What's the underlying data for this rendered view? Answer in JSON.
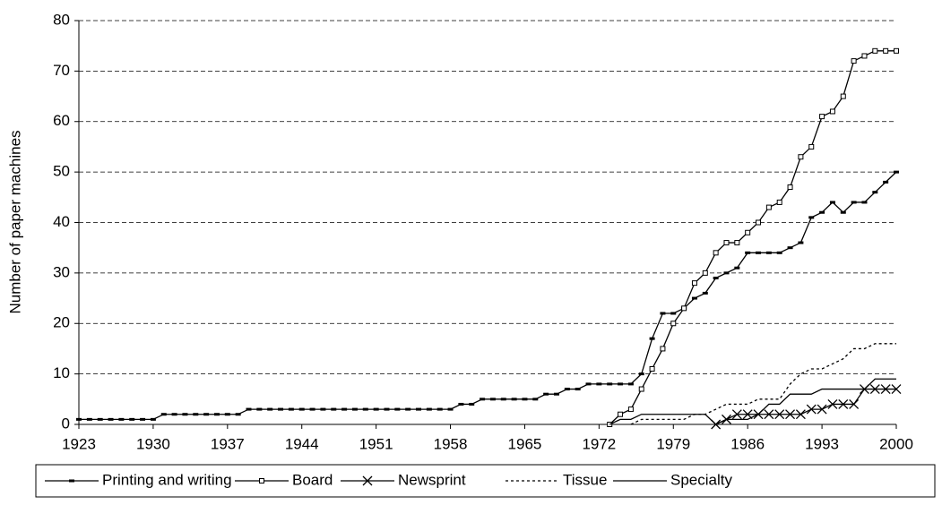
{
  "chart_data": {
    "type": "line",
    "y_label": "Number of paper machines",
    "x": [
      1923,
      1924,
      1925,
      1926,
      1927,
      1928,
      1929,
      1930,
      1931,
      1932,
      1933,
      1934,
      1935,
      1936,
      1937,
      1938,
      1939,
      1940,
      1941,
      1942,
      1943,
      1944,
      1945,
      1946,
      1947,
      1948,
      1949,
      1950,
      1951,
      1952,
      1953,
      1954,
      1955,
      1956,
      1957,
      1958,
      1959,
      1960,
      1961,
      1962,
      1963,
      1964,
      1965,
      1966,
      1967,
      1968,
      1969,
      1970,
      1971,
      1972,
      1973,
      1974,
      1975,
      1976,
      1977,
      1978,
      1979,
      1980,
      1981,
      1982,
      1983,
      1984,
      1985,
      1986,
      1987,
      1988,
      1989,
      1990,
      1991,
      1992,
      1993,
      1994,
      1995,
      1996,
      1997,
      1998,
      1999,
      2000
    ],
    "series": [
      {
        "name": "Printing and writing",
        "color": "#000000",
        "marker": "dash",
        "line_style": "solid",
        "values": [
          1,
          1,
          1,
          1,
          1,
          1,
          1,
          1,
          2,
          2,
          2,
          2,
          2,
          2,
          2,
          2,
          3,
          3,
          3,
          3,
          3,
          3,
          3,
          3,
          3,
          3,
          3,
          3,
          3,
          3,
          3,
          3,
          3,
          3,
          3,
          3,
          4,
          4,
          5,
          5,
          5,
          5,
          5,
          5,
          6,
          6,
          7,
          7,
          8,
          8,
          8,
          8,
          8,
          10,
          17,
          22,
          22,
          23,
          25,
          26,
          29,
          30,
          31,
          34,
          34,
          34,
          34,
          35,
          36,
          41,
          42,
          44,
          42,
          44,
          44,
          46,
          48,
          50
        ]
      },
      {
        "name": "Board",
        "color": "#000000",
        "marker": "square",
        "line_style": "solid",
        "values": [
          null,
          null,
          null,
          null,
          null,
          null,
          null,
          null,
          null,
          null,
          null,
          null,
          null,
          null,
          null,
          null,
          null,
          null,
          null,
          null,
          null,
          null,
          null,
          null,
          null,
          null,
          null,
          null,
          null,
          null,
          null,
          null,
          null,
          null,
          null,
          null,
          null,
          null,
          null,
          null,
          null,
          null,
          null,
          null,
          null,
          null,
          null,
          null,
          null,
          null,
          0,
          2,
          3,
          7,
          11,
          15,
          20,
          23,
          28,
          30,
          34,
          36,
          36,
          38,
          40,
          43,
          44,
          47,
          53,
          55,
          61,
          62,
          65,
          72,
          73,
          74,
          74,
          74
        ]
      },
      {
        "name": "Newsprint",
        "color": "#000000",
        "marker": "x",
        "line_style": "solid",
        "values": [
          null,
          null,
          null,
          null,
          null,
          null,
          null,
          null,
          null,
          null,
          null,
          null,
          null,
          null,
          null,
          null,
          null,
          null,
          null,
          null,
          null,
          null,
          null,
          null,
          null,
          null,
          null,
          null,
          null,
          null,
          null,
          null,
          null,
          null,
          null,
          null,
          null,
          null,
          null,
          null,
          null,
          null,
          null,
          null,
          null,
          null,
          null,
          null,
          null,
          null,
          null,
          null,
          null,
          null,
          null,
          null,
          null,
          null,
          null,
          null,
          0,
          1,
          2,
          2,
          2,
          2,
          2,
          2,
          2,
          3,
          3,
          4,
          4,
          4,
          7,
          7,
          7,
          7
        ]
      },
      {
        "name": "Tissue",
        "color": "#000000",
        "marker": "none",
        "line_style": "dotted",
        "values": [
          null,
          null,
          null,
          null,
          null,
          null,
          null,
          null,
          null,
          null,
          null,
          null,
          null,
          null,
          null,
          null,
          null,
          null,
          null,
          null,
          null,
          null,
          null,
          null,
          null,
          null,
          null,
          null,
          null,
          null,
          null,
          null,
          null,
          null,
          null,
          null,
          null,
          null,
          null,
          null,
          null,
          null,
          null,
          null,
          null,
          null,
          null,
          null,
          null,
          null,
          null,
          null,
          0,
          1,
          1,
          1,
          1,
          1,
          2,
          2,
          3,
          4,
          4,
          4,
          5,
          5,
          5,
          8,
          10,
          11,
          11,
          12,
          13,
          15,
          15,
          16,
          16,
          16
        ]
      },
      {
        "name": "Specialty",
        "color": "#000000",
        "marker": "none",
        "line_style": "solid",
        "values": [
          null,
          null,
          null,
          null,
          null,
          null,
          null,
          null,
          null,
          null,
          null,
          null,
          null,
          null,
          null,
          null,
          null,
          null,
          null,
          null,
          null,
          null,
          null,
          null,
          null,
          null,
          null,
          null,
          null,
          null,
          null,
          null,
          null,
          null,
          null,
          null,
          null,
          null,
          null,
          null,
          null,
          null,
          null,
          null,
          null,
          null,
          null,
          null,
          null,
          null,
          0,
          1,
          1,
          2,
          2,
          2,
          2,
          2,
          2,
          2,
          0,
          1,
          1,
          1,
          2,
          4,
          4,
          6,
          6,
          6,
          7,
          7,
          7,
          7,
          7,
          9,
          9,
          9
        ]
      }
    ],
    "xlim": [
      1923,
      2000
    ],
    "xticks": [
      1923,
      1930,
      1937,
      1944,
      1951,
      1958,
      1965,
      1972,
      1979,
      1986,
      1993,
      2000
    ],
    "ylim": [
      0,
      80
    ],
    "yticks": [
      0,
      10,
      20,
      30,
      40,
      50,
      60,
      70,
      80
    ],
    "grid": true,
    "legend": "bottom"
  }
}
